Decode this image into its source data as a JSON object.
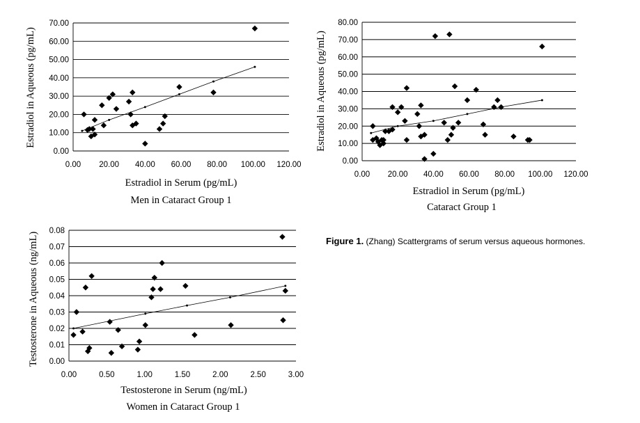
{
  "caption": {
    "label": "Figure 1.",
    "text": "(Zhang) Scattergrams of serum versus aqueous hormones."
  },
  "chart_data": [
    {
      "type": "scatter",
      "title": "Men in Cataract Group 1",
      "xlabel": "Estradiol in Serum (pg/mL)",
      "ylabel": "Estradiol in Aqueous (pg/mL)",
      "xlim": [
        0,
        120
      ],
      "ylim": [
        0,
        70
      ],
      "x_ticks": [
        "0.00",
        "20.00",
        "40.00",
        "60.00",
        "80.00",
        "100.00",
        "120.00"
      ],
      "y_ticks": [
        "0.00",
        "10.00",
        "20.00",
        "30.00",
        "40.00",
        "50.00",
        "60.00",
        "70.00"
      ],
      "grid": "horizontal",
      "points": [
        [
          6,
          20
        ],
        [
          8,
          11.5
        ],
        [
          9,
          12
        ],
        [
          10,
          8
        ],
        [
          11,
          12
        ],
        [
          12,
          9
        ],
        [
          12,
          17
        ],
        [
          16,
          25
        ],
        [
          17,
          14
        ],
        [
          20,
          29
        ],
        [
          22,
          31
        ],
        [
          24,
          23
        ],
        [
          31,
          27
        ],
        [
          32,
          20
        ],
        [
          33,
          32
        ],
        [
          33,
          14
        ],
        [
          35,
          15
        ],
        [
          40,
          4
        ],
        [
          48,
          12
        ],
        [
          50,
          15
        ],
        [
          51,
          19
        ],
        [
          59,
          35
        ],
        [
          78,
          32
        ],
        [
          101,
          67
        ]
      ],
      "trend_line": [
        [
          5,
          11
        ],
        [
          20,
          17
        ],
        [
          40,
          24
        ],
        [
          59,
          31
        ],
        [
          78,
          38
        ],
        [
          101,
          46
        ]
      ]
    },
    {
      "type": "scatter",
      "title": "Cataract Group 1",
      "xlabel": "Estradiol in Serum (pg/mL)",
      "ylabel": "Estradiol in Aqueous (pg/mL)",
      "xlim": [
        0,
        120
      ],
      "ylim": [
        0,
        80
      ],
      "x_ticks": [
        "0.00",
        "20.00",
        "40.00",
        "60.00",
        "80.00",
        "100.00",
        "120.00"
      ],
      "y_ticks": [
        "0.00",
        "10.00",
        "20.00",
        "30.00",
        "40.00",
        "50.00",
        "60.00",
        "70.00",
        "80.00"
      ],
      "grid": "horizontal",
      "points": [
        [
          6,
          20
        ],
        [
          6,
          12
        ],
        [
          8,
          13
        ],
        [
          9,
          11
        ],
        [
          10,
          9
        ],
        [
          11,
          12
        ],
        [
          12,
          10
        ],
        [
          12,
          12
        ],
        [
          13,
          17
        ],
        [
          15,
          17
        ],
        [
          17,
          18
        ],
        [
          17,
          31
        ],
        [
          20,
          28
        ],
        [
          22,
          31
        ],
        [
          24,
          23
        ],
        [
          25,
          12
        ],
        [
          25,
          42
        ],
        [
          31,
          27
        ],
        [
          32,
          20
        ],
        [
          33,
          32
        ],
        [
          33,
          14
        ],
        [
          35,
          15
        ],
        [
          35,
          1
        ],
        [
          40,
          4
        ],
        [
          41,
          72
        ],
        [
          46,
          22
        ],
        [
          48,
          12
        ],
        [
          49,
          73
        ],
        [
          50,
          15
        ],
        [
          51,
          19
        ],
        [
          52,
          43
        ],
        [
          54,
          22
        ],
        [
          59,
          35
        ],
        [
          64,
          41
        ],
        [
          68,
          21
        ],
        [
          69,
          15
        ],
        [
          74,
          31
        ],
        [
          76,
          35
        ],
        [
          78,
          31
        ],
        [
          85,
          14
        ],
        [
          93,
          12
        ],
        [
          94,
          12
        ],
        [
          101,
          66
        ]
      ],
      "trend_line": [
        [
          5,
          16
        ],
        [
          20,
          20
        ],
        [
          40,
          23
        ],
        [
          59,
          27
        ],
        [
          78,
          31
        ],
        [
          101,
          35
        ]
      ]
    },
    {
      "type": "scatter",
      "title": "Women in Cataract Group 1",
      "xlabel": "Testosterone in Serum (ng/mL)",
      "ylabel": "Testosterone in Aqueous (ng/mL)",
      "xlim": [
        0,
        3
      ],
      "ylim": [
        0,
        0.08
      ],
      "x_ticks": [
        "0.00",
        "0.50",
        "1.00",
        "1.50",
        "2.00",
        "2.50",
        "3.00"
      ],
      "y_ticks": [
        "0.00",
        "0.01",
        "0.02",
        "0.03",
        "0.04",
        "0.05",
        "0.06",
        "0.07",
        "0.08"
      ],
      "grid": "horizontal",
      "points": [
        [
          0.06,
          0.016
        ],
        [
          0.1,
          0.03
        ],
        [
          0.18,
          0.018
        ],
        [
          0.22,
          0.045
        ],
        [
          0.25,
          0.006
        ],
        [
          0.27,
          0.008
        ],
        [
          0.3,
          0.052
        ],
        [
          0.54,
          0.024
        ],
        [
          0.56,
          0.005
        ],
        [
          0.65,
          0.019
        ],
        [
          0.7,
          0.009
        ],
        [
          0.91,
          0.007
        ],
        [
          0.93,
          0.012
        ],
        [
          1.01,
          0.022
        ],
        [
          1.09,
          0.039
        ],
        [
          1.11,
          0.044
        ],
        [
          1.13,
          0.051
        ],
        [
          1.21,
          0.044
        ],
        [
          1.23,
          0.06
        ],
        [
          1.54,
          0.046
        ],
        [
          1.66,
          0.016
        ],
        [
          2.14,
          0.022
        ],
        [
          2.82,
          0.076
        ],
        [
          2.83,
          0.025
        ],
        [
          2.86,
          0.043
        ]
      ],
      "trend_line": [
        [
          0.06,
          0.02
        ],
        [
          1.01,
          0.029
        ],
        [
          1.56,
          0.034
        ],
        [
          2.13,
          0.039
        ],
        [
          2.86,
          0.046
        ]
      ]
    }
  ]
}
